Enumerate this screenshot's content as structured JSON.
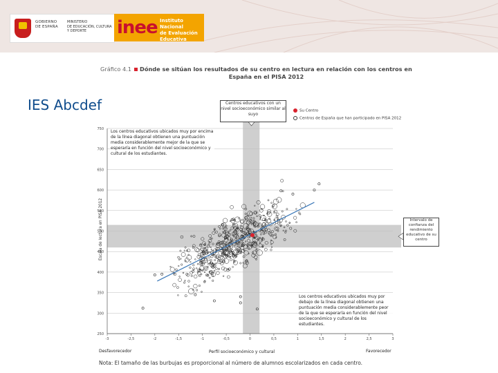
{
  "header": {
    "gov_lines": [
      "GOBIERNO",
      "DE ESPAÑA"
    ],
    "ministry_lines": [
      "MINISTERIO",
      "DE EDUCACIÓN, CULTURA",
      "Y DEPORTE"
    ],
    "inee_logo": "inee",
    "inee_lines": [
      "Instituto Nacional",
      "de Evaluación",
      "Educativa"
    ]
  },
  "school_name": "IES Abcdef",
  "colors": {
    "accent": "#d9232e",
    "band": "#cfcfcf",
    "trend": "#3b78b8",
    "banner": "#efe6e3",
    "title_blue": "#0f4c8c"
  },
  "chart_data": {
    "type": "scatter",
    "title_number": "Gráfico 4.1",
    "title": "Dónde se sitúan los resultados de su centro en lectura en relación con los centros en",
    "title_line2": "España en el PISA 2012",
    "xlabel": "Perfil socioeconómico y cultural",
    "ylabel": "Escala de lectura en PISA 2012",
    "x_left_label": "Desfavorecedor",
    "x_right_label": "Favorecedor",
    "xlim": [
      -3,
      3
    ],
    "ylim": [
      250,
      750
    ],
    "x_ticks": [
      "-3",
      "-2,5",
      "-2",
      "-1,5",
      "-1",
      "-0,5",
      "0",
      "0,5",
      "1",
      "1,5",
      "2",
      "2,5",
      "3"
    ],
    "y_ticks": [
      "250",
      "300",
      "350",
      "400",
      "450",
      "500",
      "550",
      "600",
      "650",
      "700",
      "750"
    ],
    "x_tick_values": [
      -3,
      -2.5,
      -2,
      -1.5,
      -1,
      -0.5,
      0,
      0.5,
      1,
      1.5,
      2,
      2.5,
      3
    ],
    "y_tick_values": [
      250,
      300,
      350,
      400,
      450,
      500,
      550,
      600,
      650,
      700,
      750
    ],
    "vertical_band": [
      -0.15,
      0.2
    ],
    "horizontal_band": [
      460,
      515
    ],
    "trend_line": {
      "x": [
        -1.95,
        1.35
      ],
      "y": [
        378,
        570
      ]
    },
    "school_point": {
      "x": 0.05,
      "y": 490
    },
    "legend": [
      "Su Centro",
      "Centros de España que han participado en PISA 2012"
    ],
    "callout_band_x": "Centros educativos con un nivel socioeconómico similar al suyo",
    "callout_band_y": "Intervalo de confianza del rendimiento educativo de su centro",
    "annotation_top": "Los centros educativos ubicados muy por encima de la línea diagonal obtienen una puntuación media considerablemente mejor de la que se esperaría en función del nivel socioeconómico y cultural de los estudiantes.",
    "annotation_bottom": "Los centros educativos ubicados muy por debajo de la línea diagonal obtienen una puntuación media considerablemente peor de la que se esperaría en función del nivel socioeconómico y cultural de los estudiantes."
  },
  "note": "Nota: El tamaño de las burbujas es proporcional al número de alumnos escolarizados en cada centro."
}
